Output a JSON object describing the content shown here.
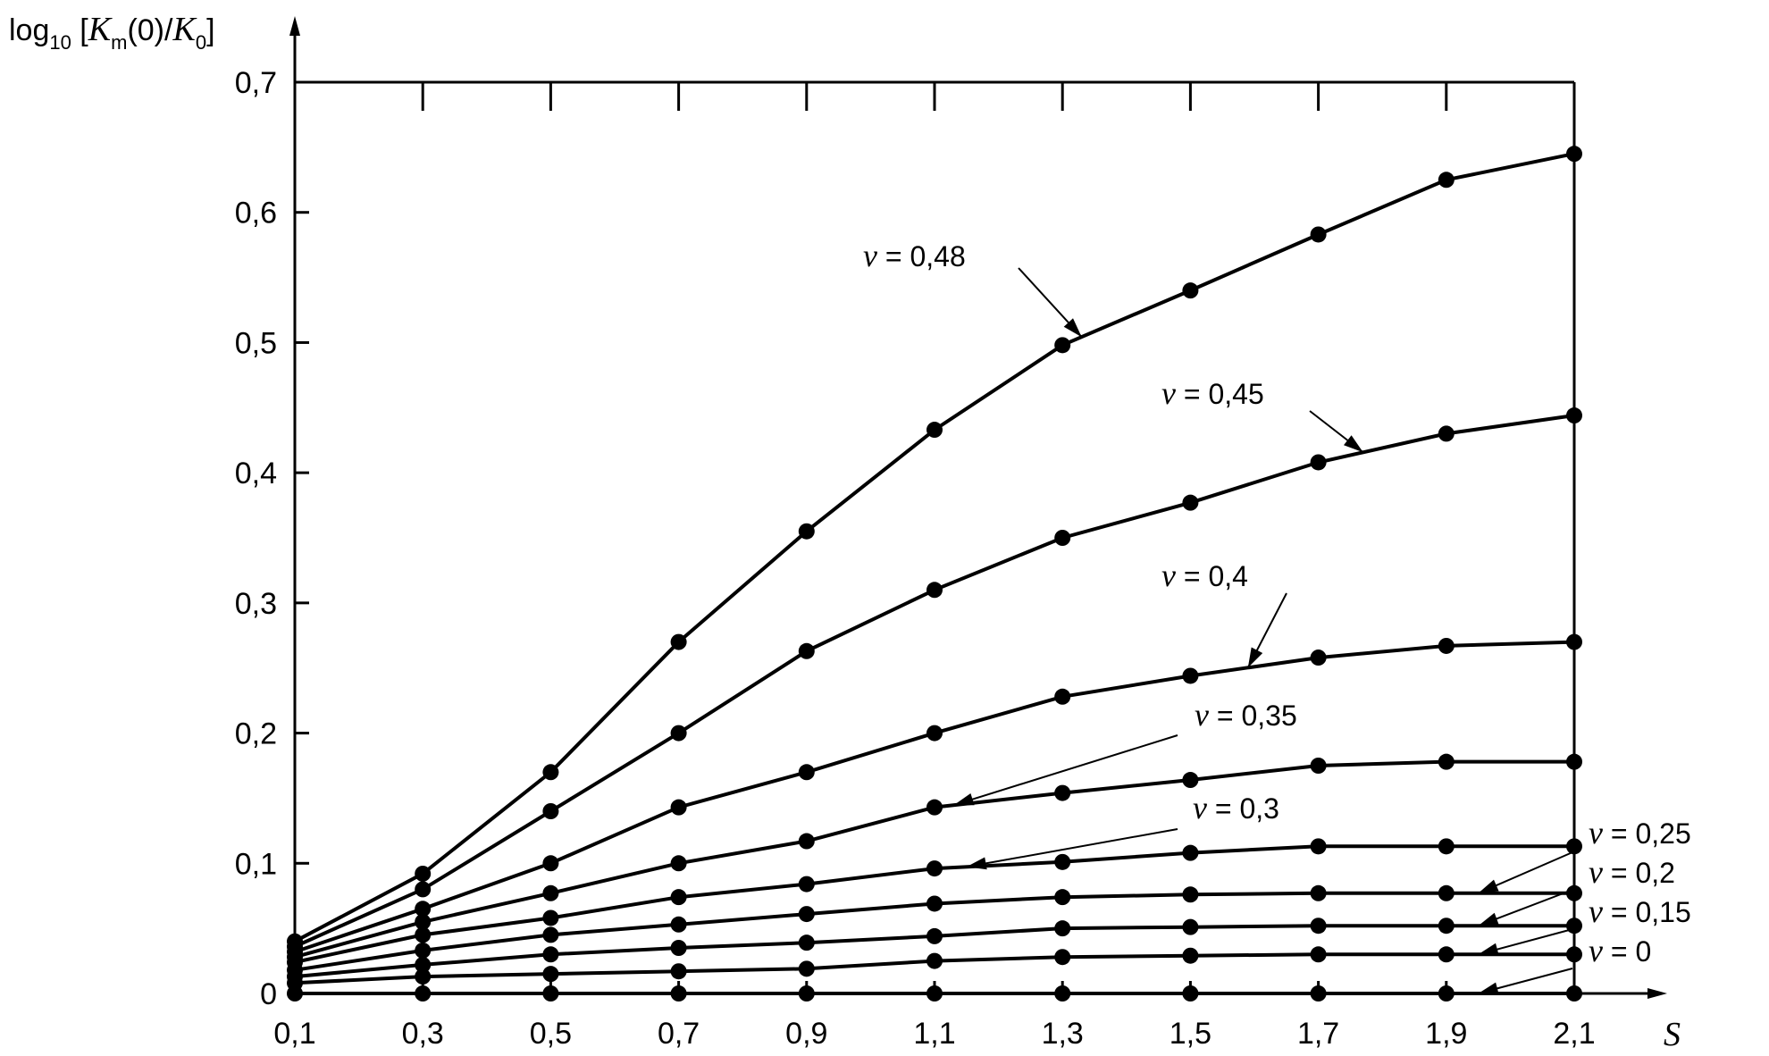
{
  "chart_data": {
    "type": "line",
    "ylabel": {
      "prefix": "log",
      "sub": "10",
      "open": " [",
      "k1": "K",
      "k1_sub": "m",
      "mid": "(0)/",
      "k2": "K",
      "k2_sub": "0",
      "close": "]"
    },
    "xlabel": "S",
    "x_ticks": [
      0.1,
      0.3,
      0.5,
      0.7,
      0.9,
      1.1,
      1.3,
      1.5,
      1.7,
      1.9,
      2.1
    ],
    "x_tick_labels": [
      "0,1",
      "0,3",
      "0,5",
      "0,7",
      "0,9",
      "1,1",
      "1,3",
      "1,5",
      "1,7",
      "1,9",
      "2,1"
    ],
    "y_ticks": [
      0,
      0.1,
      0.2,
      0.3,
      0.4,
      0.5,
      0.6,
      0.7
    ],
    "y_tick_labels": [
      "0",
      "0,1",
      "0,2",
      "0,3",
      "0,4",
      "0,5",
      "0,6",
      "0,7"
    ],
    "xlim": [
      0.1,
      2.1
    ],
    "ylim": [
      0,
      0.7
    ],
    "grid": false,
    "x": [
      0.1,
      0.3,
      0.5,
      0.7,
      0.9,
      1.1,
      1.3,
      1.5,
      1.7,
      1.9,
      2.1
    ],
    "series": [
      {
        "name": "ν = 0,48",
        "values": [
          0.04,
          0.092,
          0.17,
          0.27,
          0.355,
          0.433,
          0.498,
          0.54,
          0.583,
          0.625,
          0.645
        ]
      },
      {
        "name": "ν = 0,45",
        "values": [
          0.036,
          0.08,
          0.14,
          0.2,
          0.263,
          0.31,
          0.35,
          0.377,
          0.408,
          0.43,
          0.444
        ]
      },
      {
        "name": "ν = 0,4",
        "values": [
          0.032,
          0.065,
          0.1,
          0.143,
          0.17,
          0.2,
          0.228,
          0.244,
          0.258,
          0.267,
          0.27
        ]
      },
      {
        "name": "ν = 0,35",
        "values": [
          0.028,
          0.055,
          0.077,
          0.1,
          0.117,
          0.143,
          0.154,
          0.164,
          0.175,
          0.178,
          0.178
        ]
      },
      {
        "name": "ν = 0,3",
        "values": [
          0.024,
          0.045,
          0.058,
          0.074,
          0.084,
          0.096,
          0.101,
          0.108,
          0.113,
          0.113,
          0.113
        ]
      },
      {
        "name": "ν = 0,25",
        "values": [
          0.018,
          0.033,
          0.045,
          0.053,
          0.061,
          0.069,
          0.074,
          0.076,
          0.077,
          0.077,
          0.077
        ]
      },
      {
        "name": "ν = 0,2",
        "values": [
          0.013,
          0.022,
          0.03,
          0.035,
          0.039,
          0.044,
          0.05,
          0.051,
          0.052,
          0.052,
          0.052
        ]
      },
      {
        "name": "ν = 0,15",
        "values": [
          0.008,
          0.013,
          0.015,
          0.017,
          0.019,
          0.025,
          0.028,
          0.029,
          0.03,
          0.03,
          0.03
        ]
      },
      {
        "name": "ν = 0",
        "values": [
          0,
          0,
          0,
          0,
          0,
          0,
          0,
          0,
          0,
          0,
          0
        ]
      }
    ],
    "annotations": [
      {
        "series": 0,
        "nu": "ν",
        "text": " = 0,48"
      },
      {
        "series": 1,
        "nu": "ν",
        "text": " = 0,45"
      },
      {
        "series": 2,
        "nu": "ν",
        "text": " = 0,4"
      },
      {
        "series": 3,
        "nu": "ν",
        "text": " = 0,35"
      },
      {
        "series": 4,
        "nu": "ν",
        "text": " = 0,3"
      },
      {
        "series": 5,
        "nu": "ν",
        "text": " = 0,25"
      },
      {
        "series": 6,
        "nu": "ν",
        "text": " = 0,2"
      },
      {
        "series": 7,
        "nu": "ν",
        "text": " = 0,15"
      },
      {
        "series": 8,
        "nu": "ν",
        "text": " = 0"
      }
    ]
  }
}
